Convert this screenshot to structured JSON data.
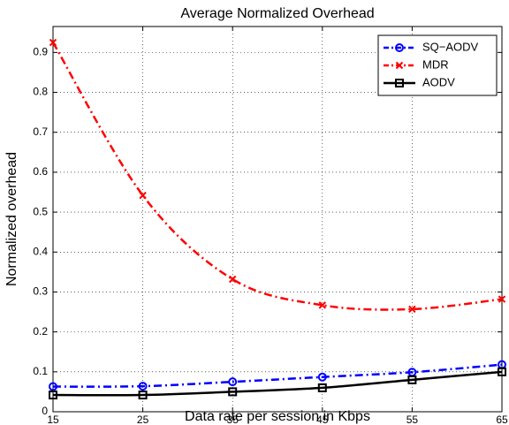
{
  "chart_data": {
    "type": "line",
    "title": "Average Normalized Overhead",
    "xlabel": "Data rate per session in Kbps",
    "ylabel": "Normalized overhead",
    "x": [
      15,
      25,
      35,
      45,
      55,
      65
    ],
    "series": [
      {
        "name": "SQ−AODV",
        "color": "#0000ff",
        "marker": "circle",
        "dash": "dashdot",
        "values": [
          0.063,
          0.064,
          0.075,
          0.087,
          0.099,
          0.118
        ]
      },
      {
        "name": "MDR",
        "color": "#ff0000",
        "marker": "x",
        "dash": "dashdot",
        "values": [
          0.925,
          0.542,
          0.332,
          0.267,
          0.257,
          0.282
        ]
      },
      {
        "name": "AODV",
        "color": "#000000",
        "marker": "square",
        "dash": "solid",
        "values": [
          0.042,
          0.042,
          0.05,
          0.06,
          0.08,
          0.1
        ]
      }
    ],
    "xlim": [
      15,
      65
    ],
    "xticks": [
      15,
      25,
      35,
      45,
      55,
      65
    ],
    "ylim": [
      0,
      0.965
    ],
    "yticks": [
      0,
      0.1,
      0.2,
      0.3,
      0.4,
      0.5,
      0.6,
      0.7,
      0.8,
      0.9
    ],
    "grid": true,
    "legend": "northeast"
  }
}
